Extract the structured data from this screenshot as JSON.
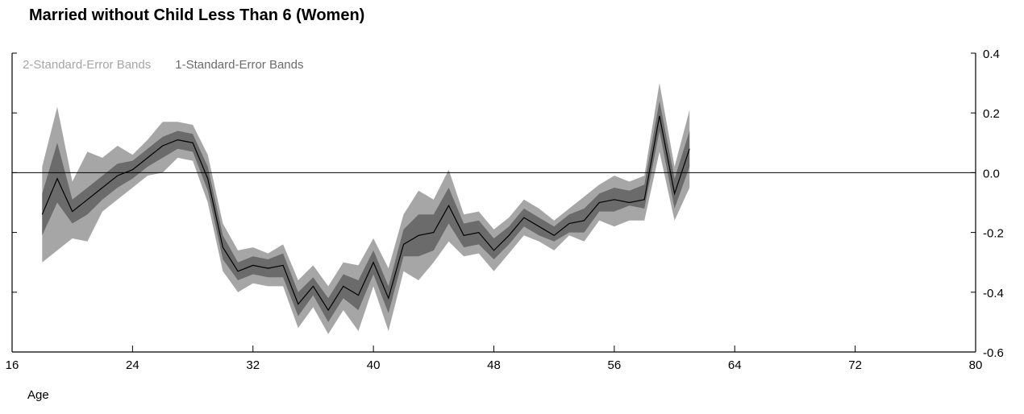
{
  "chart_data": {
    "type": "line",
    "title": "Married without Child Less Than 6 (Women)",
    "xlabel": "Age",
    "ylabel": "",
    "xlim": [
      16,
      80
    ],
    "ylim": [
      -0.6,
      0.4
    ],
    "xticks": [
      "16",
      "24",
      "32",
      "40",
      "48",
      "56",
      "64",
      "72",
      "80"
    ],
    "yticks": [
      "0.4",
      "0.2",
      "0.0",
      "-0.2",
      "-0.4",
      "-0.6"
    ],
    "y_axis_position": "right",
    "reference_line_y": 0.0,
    "legend": [
      "2-Standard-Error Bands",
      "1-Standard-Error Bands"
    ],
    "legend_placement": "top-left",
    "colors": {
      "band2": "#a6a6a6",
      "band1": "#6b6b6b",
      "line": "#000000"
    },
    "x": [
      18,
      19,
      20,
      21,
      22,
      23,
      24,
      25,
      26,
      27,
      28,
      29,
      30,
      31,
      32,
      33,
      34,
      35,
      36,
      37,
      38,
      39,
      40,
      41,
      42,
      43,
      44,
      45,
      46,
      47,
      48,
      49,
      50,
      51,
      52,
      53,
      54,
      55,
      56,
      57,
      58,
      59,
      60,
      61
    ],
    "series": [
      {
        "values": [
          -0.14,
          -0.02,
          -0.13,
          -0.09,
          -0.05,
          -0.01,
          0.01,
          0.05,
          0.09,
          0.11,
          0.1,
          -0.02,
          -0.25,
          -0.33,
          -0.31,
          -0.32,
          -0.31,
          -0.44,
          -0.38,
          -0.46,
          -0.38,
          -0.41,
          -0.3,
          -0.42,
          -0.24,
          -0.21,
          -0.2,
          -0.11,
          -0.21,
          -0.2,
          -0.26,
          -0.21,
          -0.15,
          -0.18,
          -0.21,
          -0.17,
          -0.16,
          -0.1,
          -0.09,
          -0.1,
          -0.09,
          0.19,
          -0.07,
          0.08
        ]
      },
      {
        "name": "1-Standard-Error Bands",
        "upper": [
          -0.07,
          0.1,
          -0.09,
          -0.05,
          -0.01,
          0.03,
          0.04,
          0.08,
          0.12,
          0.14,
          0.13,
          0.02,
          -0.21,
          -0.3,
          -0.28,
          -0.29,
          -0.27,
          -0.4,
          -0.35,
          -0.42,
          -0.34,
          -0.36,
          -0.26,
          -0.38,
          -0.19,
          -0.14,
          -0.14,
          -0.05,
          -0.17,
          -0.16,
          -0.22,
          -0.18,
          -0.12,
          -0.15,
          -0.18,
          -0.14,
          -0.12,
          -0.07,
          -0.05,
          -0.06,
          -0.04,
          0.24,
          -0.02,
          0.14
        ],
        "lower": [
          -0.21,
          -0.1,
          -0.17,
          -0.14,
          -0.09,
          -0.05,
          -0.02,
          0.02,
          0.05,
          0.08,
          0.07,
          -0.06,
          -0.29,
          -0.36,
          -0.34,
          -0.35,
          -0.35,
          -0.48,
          -0.41,
          -0.5,
          -0.42,
          -0.46,
          -0.34,
          -0.47,
          -0.28,
          -0.28,
          -0.26,
          -0.17,
          -0.25,
          -0.24,
          -0.29,
          -0.24,
          -0.18,
          -0.21,
          -0.23,
          -0.2,
          -0.2,
          -0.13,
          -0.13,
          -0.11,
          -0.12,
          0.14,
          -0.12,
          0.02
        ]
      },
      {
        "name": "2-Standard-Error Bands",
        "upper": [
          0.02,
          0.22,
          -0.03,
          0.07,
          0.05,
          0.09,
          0.06,
          0.11,
          0.17,
          0.17,
          0.16,
          0.06,
          -0.17,
          -0.26,
          -0.25,
          -0.27,
          -0.24,
          -0.36,
          -0.31,
          -0.38,
          -0.3,
          -0.31,
          -0.22,
          -0.32,
          -0.14,
          -0.06,
          -0.09,
          0.01,
          -0.14,
          -0.13,
          -0.19,
          -0.15,
          -0.09,
          -0.12,
          -0.16,
          -0.12,
          -0.08,
          -0.04,
          -0.01,
          -0.03,
          -0.01,
          0.3,
          0.02,
          0.21
        ],
        "lower": [
          -0.3,
          -0.26,
          -0.22,
          -0.23,
          -0.13,
          -0.09,
          -0.05,
          -0.01,
          0.0,
          0.05,
          0.04,
          -0.1,
          -0.33,
          -0.4,
          -0.37,
          -0.38,
          -0.38,
          -0.52,
          -0.45,
          -0.54,
          -0.46,
          -0.53,
          -0.38,
          -0.53,
          -0.33,
          -0.36,
          -0.3,
          -0.23,
          -0.28,
          -0.27,
          -0.33,
          -0.27,
          -0.21,
          -0.23,
          -0.26,
          -0.21,
          -0.23,
          -0.16,
          -0.18,
          -0.16,
          -0.16,
          0.07,
          -0.16,
          -0.05
        ]
      }
    ]
  }
}
